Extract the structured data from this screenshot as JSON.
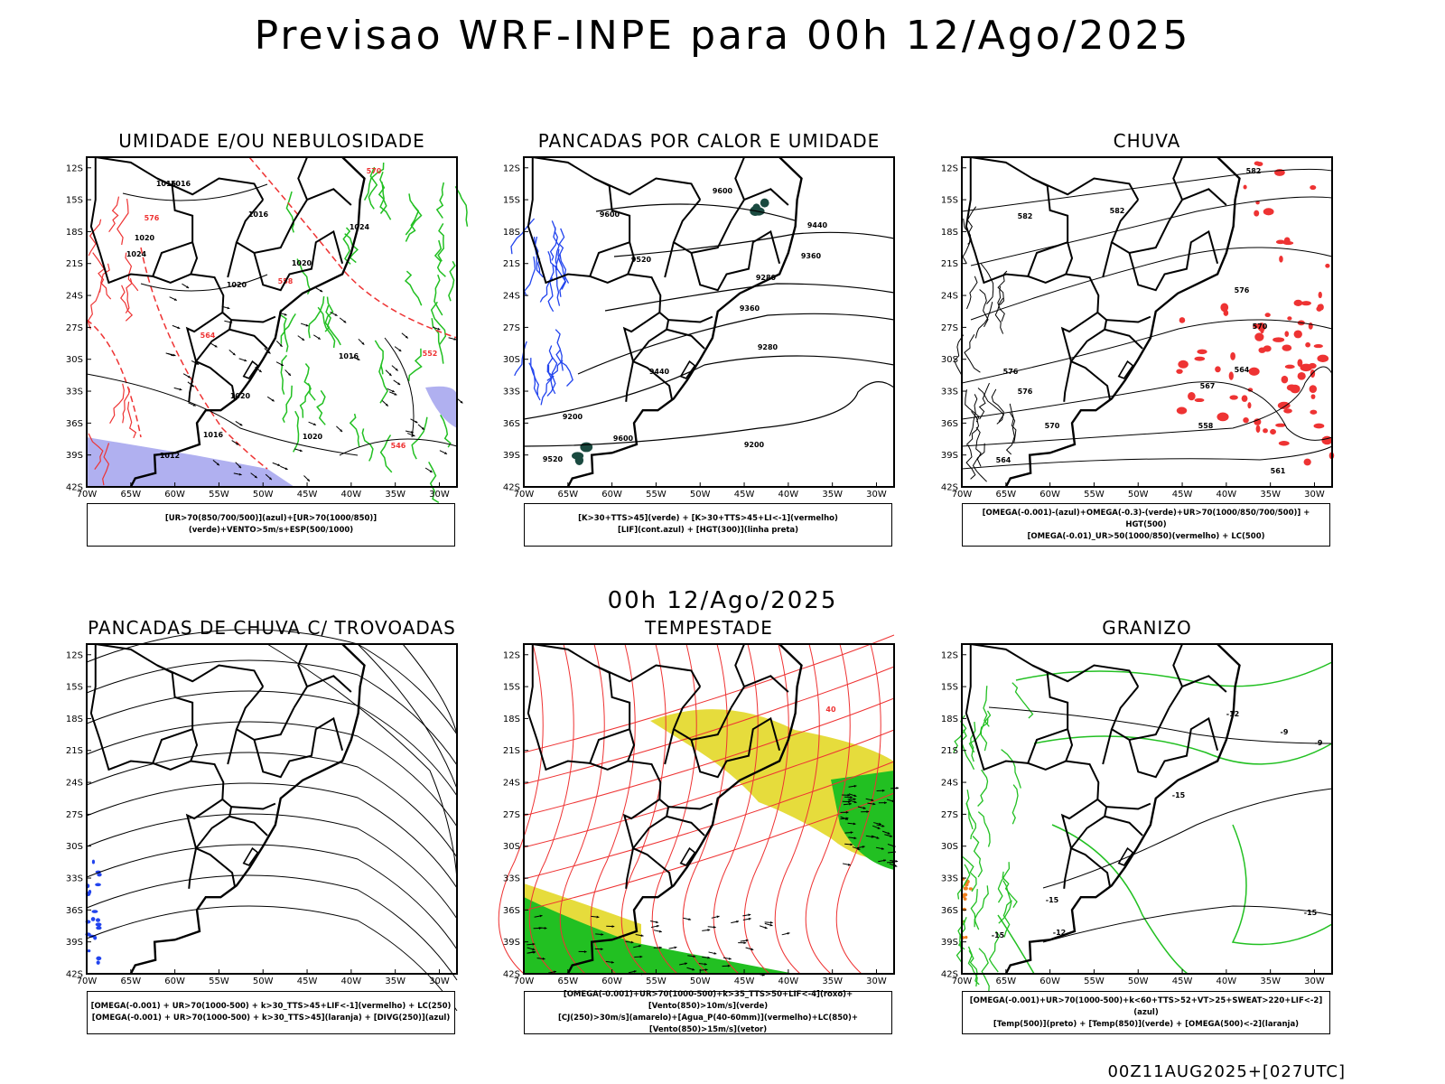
{
  "header": {
    "title": "Previsao WRF-INPE  para 00h 12/Ago/2025"
  },
  "middle_title": "00h 12/Ago/2025",
  "footer": "00Z11AUG2025+[027UTC]",
  "axes": {
    "lat_labels": [
      "12S",
      "15S",
      "18S",
      "21S",
      "24S",
      "27S",
      "30S",
      "33S",
      "36S",
      "39S",
      "42S"
    ],
    "lon_labels": [
      "70W",
      "65W",
      "60W",
      "55W",
      "50W",
      "45W",
      "40W",
      "35W",
      "30W"
    ]
  },
  "colors": {
    "green": "#22c022",
    "red": "#ee3333",
    "blue": "#2244ee",
    "yellow": "#e6dc3c",
    "lavender": "#b0b0f0",
    "dark_green": "#1a4a40",
    "orange": "#f08020"
  },
  "panels": [
    {
      "title": "UMIDADE E/OU NEBULOSIDADE",
      "legend": [
        "[UR>70(850/700/500)](azul)+[UR>70(1000/850)](verde)+VENTO>5m/s+ESP(500/1000)"
      ],
      "contour_labels": [
        "1016",
        "1016",
        "1016",
        "1020",
        "1024",
        "1020",
        "1020",
        "1024",
        "1016",
        "1020",
        "1012",
        "1016",
        "1020",
        "570",
        "576",
        "564",
        "558",
        "552",
        "546"
      ]
    },
    {
      "title": "PANCADAS POR CALOR E UMIDADE",
      "legend": [
        "[K>30+TTS>45](verde) + [K>30+TTS>45+LI<-1](vermelho)",
        "[LIF](cont.azul) + [HGT(300)](linha preta)"
      ],
      "contour_labels": [
        "9600",
        "9600",
        "9520",
        "9440",
        "9360",
        "9280",
        "9200",
        "9600",
        "9520",
        "9440",
        "9360",
        "9280",
        "9200"
      ]
    },
    {
      "title": "CHUVA",
      "legend": [
        "[OMEGA(-0.001)-(azul)+OMEGA(-0.3)-(verde)+UR>70(1000/850/700/500)] + HGT(500)",
        "[OMEGA(-0.01)_UR>50(1000/850)(vermelho) + LC(500)"
      ],
      "contour_labels": [
        "582",
        "582",
        "576",
        "576",
        "570",
        "567",
        "564",
        "561",
        "558",
        "564",
        "570",
        "576",
        "582"
      ]
    },
    {
      "title": "PANCADAS DE CHUVA C/ TROVOADAS",
      "legend": [
        "[OMEGA(-0.001) + UR>70(1000-500) + k>30_TTS>45+LIF<-1](vermelho) + LC(250)",
        "[OMEGA(-0.001) + UR>70(1000-500) + k>30_TTS>45](laranja) + [DIVG(250)](azul)"
      ],
      "contour_labels": []
    },
    {
      "title": "TEMPESTADE",
      "legend": [
        "[OMEGA(-0.001)+UR>70(1000-500)+k>35_TTS>50+LIF<-4](roxo)+[Vento(850)>10m/s](verde)",
        "[CJ(250)>30m/s](amarelo)+[Agua_P(40-60mm)](vermelho)+LC(850)+[Vento(850)>15m/s](vetor)"
      ],
      "contour_labels": [
        "40"
      ]
    },
    {
      "title": "GRANIZO",
      "legend": [
        "[OMEGA(-0.001)+UR>70(1000-500)+k<60+TTS>52+VT>25+SWEAT>220+LIF<-2](azul)",
        "[Temp(500)](preto) + [Temp(850)](verde) + [OMEGA(500)<-2](laranja)"
      ],
      "contour_labels": [
        "-9",
        "-9",
        "-12",
        "-15",
        "-15",
        "-12",
        "-15",
        "-15"
      ]
    }
  ]
}
